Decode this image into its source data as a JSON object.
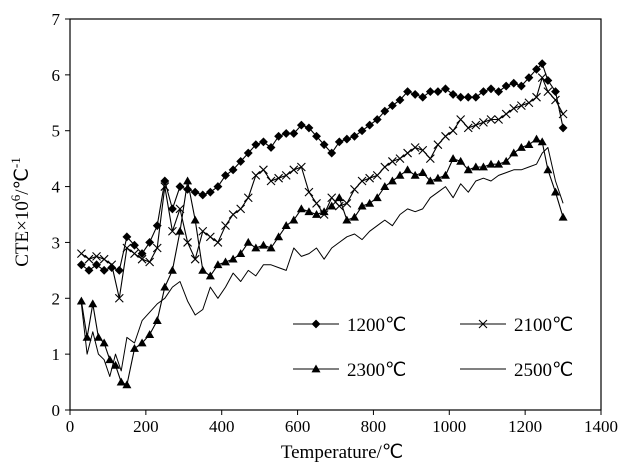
{
  "chart_data": {
    "type": "line",
    "xlabel": "Temperature/℃",
    "ylabel_prefix": "CTE×10",
    "ylabel_sup1": "6",
    "ylabel_mid": "/℃",
    "ylabel_sup2": "-1",
    "xlim": [
      0,
      1400
    ],
    "ylim": [
      0,
      7
    ],
    "x_ticks": [
      "0",
      "200",
      "400",
      "600",
      "800",
      "1000",
      "1200",
      "1400"
    ],
    "y_ticks": [
      "0",
      "1",
      "2",
      "3",
      "4",
      "5",
      "6",
      "7"
    ],
    "grid": false,
    "legend_position": "lower-right",
    "series": [
      {
        "name": "1200℃",
        "marker": "diamond",
        "x": [
          30,
          50,
          70,
          90,
          110,
          130,
          150,
          170,
          190,
          210,
          230,
          250,
          270,
          290,
          310,
          330,
          350,
          370,
          390,
          410,
          430,
          450,
          470,
          490,
          510,
          530,
          550,
          570,
          590,
          610,
          630,
          650,
          670,
          690,
          710,
          730,
          750,
          770,
          790,
          810,
          830,
          850,
          870,
          890,
          910,
          930,
          950,
          970,
          990,
          1010,
          1030,
          1050,
          1070,
          1090,
          1110,
          1130,
          1150,
          1170,
          1190,
          1210,
          1230,
          1245,
          1260,
          1280,
          1300
        ],
        "y": [
          2.6,
          2.5,
          2.6,
          2.5,
          2.55,
          2.5,
          3.1,
          2.95,
          2.8,
          3.0,
          3.3,
          4.1,
          3.6,
          4.0,
          3.95,
          3.9,
          3.85,
          3.9,
          4.0,
          4.2,
          4.3,
          4.45,
          4.6,
          4.75,
          4.8,
          4.7,
          4.9,
          4.95,
          4.95,
          5.1,
          5.05,
          4.9,
          4.75,
          4.6,
          4.8,
          4.85,
          4.9,
          5.0,
          5.1,
          5.2,
          5.35,
          5.45,
          5.55,
          5.7,
          5.65,
          5.6,
          5.7,
          5.7,
          5.75,
          5.65,
          5.6,
          5.6,
          5.6,
          5.7,
          5.75,
          5.7,
          5.8,
          5.85,
          5.8,
          5.95,
          6.1,
          6.2,
          5.9,
          5.7,
          5.05
        ]
      },
      {
        "name": "2100℃",
        "marker": "x",
        "x": [
          30,
          50,
          70,
          90,
          110,
          130,
          150,
          170,
          190,
          210,
          230,
          250,
          270,
          290,
          310,
          330,
          350,
          370,
          390,
          410,
          430,
          450,
          470,
          490,
          510,
          530,
          550,
          570,
          590,
          610,
          630,
          650,
          670,
          690,
          710,
          730,
          750,
          770,
          790,
          810,
          830,
          850,
          870,
          890,
          910,
          930,
          950,
          970,
          990,
          1010,
          1030,
          1050,
          1070,
          1090,
          1110,
          1130,
          1150,
          1170,
          1190,
          1210,
          1230,
          1245,
          1260,
          1280,
          1300
        ],
        "y": [
          2.8,
          2.7,
          2.75,
          2.7,
          2.6,
          2.0,
          2.9,
          2.8,
          2.7,
          2.65,
          2.9,
          4.0,
          3.2,
          3.6,
          3.0,
          2.7,
          3.2,
          3.1,
          3.0,
          3.3,
          3.5,
          3.6,
          3.8,
          4.2,
          4.3,
          4.1,
          4.15,
          4.2,
          4.3,
          4.35,
          3.9,
          3.7,
          3.5,
          3.8,
          3.65,
          3.7,
          3.95,
          4.1,
          4.15,
          4.2,
          4.35,
          4.45,
          4.5,
          4.6,
          4.7,
          4.65,
          4.5,
          4.75,
          4.9,
          5.0,
          5.2,
          5.05,
          5.1,
          5.15,
          5.2,
          5.2,
          5.3,
          5.4,
          5.45,
          5.5,
          5.6,
          5.95,
          5.7,
          5.55,
          5.3
        ]
      },
      {
        "name": "2300℃",
        "marker": "triangle",
        "x": [
          30,
          45,
          60,
          75,
          90,
          105,
          120,
          135,
          150,
          170,
          190,
          210,
          230,
          250,
          270,
          290,
          310,
          330,
          350,
          370,
          390,
          410,
          430,
          450,
          470,
          490,
          510,
          530,
          550,
          570,
          590,
          610,
          630,
          650,
          670,
          690,
          710,
          730,
          750,
          770,
          790,
          810,
          830,
          850,
          870,
          890,
          910,
          930,
          950,
          970,
          990,
          1010,
          1030,
          1050,
          1070,
          1090,
          1110,
          1130,
          1150,
          1170,
          1190,
          1210,
          1230,
          1245,
          1260,
          1280,
          1300
        ],
        "y": [
          1.95,
          1.3,
          1.9,
          1.3,
          1.2,
          0.9,
          0.8,
          0.5,
          0.45,
          1.1,
          1.2,
          1.35,
          1.6,
          2.2,
          2.5,
          3.2,
          4.1,
          3.4,
          2.5,
          2.4,
          2.6,
          2.65,
          2.7,
          2.8,
          3.0,
          2.9,
          2.95,
          2.9,
          3.1,
          3.3,
          3.4,
          3.6,
          3.55,
          3.5,
          3.55,
          3.65,
          3.8,
          3.4,
          3.45,
          3.65,
          3.7,
          3.8,
          4.0,
          4.1,
          4.2,
          4.3,
          4.2,
          4.25,
          4.1,
          4.15,
          4.2,
          4.5,
          4.45,
          4.3,
          4.35,
          4.35,
          4.4,
          4.4,
          4.45,
          4.6,
          4.7,
          4.75,
          4.85,
          4.8,
          4.3,
          3.9,
          3.45
        ]
      },
      {
        "name": "2500℃",
        "marker": "none",
        "x": [
          30,
          45,
          60,
          75,
          90,
          105,
          120,
          135,
          150,
          170,
          190,
          210,
          230,
          250,
          270,
          290,
          310,
          330,
          350,
          370,
          390,
          410,
          430,
          450,
          470,
          490,
          510,
          530,
          550,
          570,
          590,
          610,
          630,
          650,
          670,
          690,
          710,
          730,
          750,
          770,
          790,
          810,
          830,
          850,
          870,
          890,
          910,
          930,
          950,
          970,
          990,
          1010,
          1030,
          1050,
          1070,
          1090,
          1110,
          1130,
          1150,
          1170,
          1190,
          1210,
          1230,
          1245,
          1260,
          1280,
          1300
        ],
        "y": [
          1.9,
          1.0,
          1.4,
          1.0,
          0.9,
          0.6,
          1.0,
          0.7,
          1.3,
          1.2,
          1.6,
          1.75,
          1.9,
          2.0,
          2.2,
          2.3,
          1.95,
          1.7,
          1.8,
          2.2,
          2.0,
          2.2,
          2.45,
          2.3,
          2.5,
          2.4,
          2.6,
          2.6,
          2.55,
          2.5,
          2.9,
          2.75,
          2.8,
          2.9,
          2.7,
          2.9,
          3.0,
          3.1,
          3.15,
          3.05,
          3.2,
          3.3,
          3.4,
          3.3,
          3.5,
          3.6,
          3.55,
          3.6,
          3.8,
          3.9,
          4.0,
          3.8,
          4.05,
          3.9,
          4.1,
          4.15,
          4.1,
          4.2,
          4.25,
          4.3,
          4.3,
          4.35,
          4.4,
          4.6,
          4.7,
          4.1,
          3.7
        ]
      }
    ]
  }
}
